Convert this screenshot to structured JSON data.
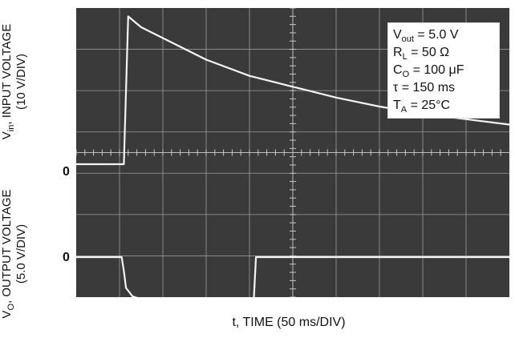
{
  "chart_data": [
    {
      "type": "line",
      "panel": "top",
      "ylabel_main": "V",
      "ylabel_sub": "in",
      "ylabel_rest": ", INPUT VOLTAGE",
      "ylabel_scale": "(10 V/DIV)",
      "zero_label": "0",
      "x_divisions": 10,
      "series": [
        {
          "x": [
            0.0,
            0.6,
            1.1,
            1.2,
            1.5,
            2.0,
            3.0,
            4.0,
            5.0,
            6.0,
            7.0,
            8.0,
            9.0,
            10.0
          ],
          "y": [
            0.0,
            0.0,
            0.0,
            4.1,
            3.8,
            3.5,
            2.9,
            2.45,
            2.15,
            1.85,
            1.6,
            1.4,
            1.25,
            1.1
          ]
        }
      ]
    },
    {
      "type": "line",
      "panel": "bottom",
      "ylabel_main": "V",
      "ylabel_sub": "O",
      "ylabel_rest": ", OUTPUT VOLTAGE",
      "ylabel_scale": "(5.0 V/DIV)",
      "zero_label": "0",
      "x_divisions": 10,
      "series": [
        {
          "x": [
            0.0,
            1.05,
            1.1,
            1.15,
            1.3,
            1.5,
            2.0,
            4.1,
            4.15,
            10.0
          ],
          "y": [
            0.0,
            0.0,
            -0.5,
            -1.1,
            -1.4,
            -1.5,
            -1.5,
            -1.5,
            0.0,
            0.0
          ]
        }
      ]
    }
  ],
  "xlabel": "t, TIME (50 ms/DIV)",
  "legend": {
    "vout_main": "V",
    "vout_sub": "out",
    "vout_rest": " = 5.0 V",
    "rl_main": "R",
    "rl_sub": "L",
    "rl_rest": " = 50 Ω",
    "co_main": "C",
    "co_sub": "O",
    "co_rest": " = 100 μF",
    "tau": "τ = 150 ms",
    "ta_main": "T",
    "ta_sub": "A",
    "ta_rest": " = 25°C"
  },
  "colors": {
    "screen": "#3a3a3a",
    "grid": "#9a9a9a",
    "trace": "#f4f4f4"
  }
}
